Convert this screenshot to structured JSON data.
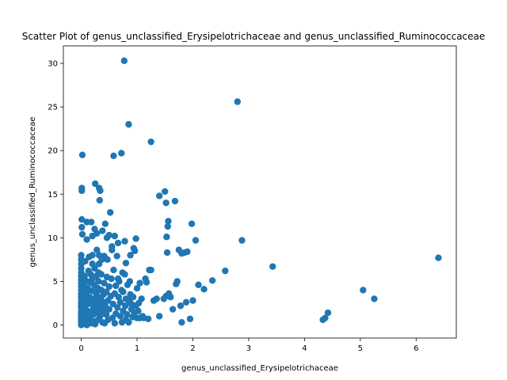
{
  "chart_data": {
    "type": "scatter",
    "title": "Scatter Plot of genus_unclassified_Erysipelotrichaceae and genus_unclassified_Ruminococcaceae",
    "xlabel": "genus_unclassified_Erysipelotrichaceae",
    "ylabel": "genus_unclassified_Ruminococcaceae",
    "xlim": [
      -0.32,
      6.72
    ],
    "ylim": [
      -1.5,
      32.0
    ],
    "xticks": [
      0,
      1,
      2,
      3,
      4,
      5,
      6
    ],
    "yticks": [
      0,
      5,
      10,
      15,
      20,
      25,
      30
    ],
    "grid": false,
    "marker_color": "#1f77b4",
    "points": [
      [
        0.0,
        0.0
      ],
      [
        0.0,
        0.1
      ],
      [
        0.0,
        0.3
      ],
      [
        0.0,
        0.5
      ],
      [
        0.0,
        0.7
      ],
      [
        0.0,
        1.0
      ],
      [
        0.0,
        1.3
      ],
      [
        0.0,
        1.6
      ],
      [
        0.0,
        2.0
      ],
      [
        0.0,
        2.3
      ],
      [
        0.0,
        2.6
      ],
      [
        0.0,
        3.0
      ],
      [
        0.0,
        3.3
      ],
      [
        0.0,
        3.6
      ],
      [
        0.0,
        4.0
      ],
      [
        0.0,
        4.4
      ],
      [
        0.0,
        4.8
      ],
      [
        0.0,
        5.2
      ],
      [
        0.0,
        5.6
      ],
      [
        0.0,
        6.0
      ],
      [
        0.0,
        6.5
      ],
      [
        0.0,
        7.0
      ],
      [
        0.0,
        7.5
      ],
      [
        0.0,
        8.0
      ],
      [
        0.01,
        11.2
      ],
      [
        0.01,
        12.1
      ],
      [
        0.01,
        15.4
      ],
      [
        0.01,
        15.7
      ],
      [
        0.02,
        19.5
      ],
      [
        0.02,
        10.4
      ],
      [
        0.05,
        0.2
      ],
      [
        0.05,
        1.1
      ],
      [
        0.05,
        2.2
      ],
      [
        0.05,
        3.4
      ],
      [
        0.05,
        4.5
      ],
      [
        0.06,
        5.6
      ],
      [
        0.07,
        7.3
      ],
      [
        0.08,
        0.6
      ],
      [
        0.08,
        1.8
      ],
      [
        0.08,
        2.8
      ],
      [
        0.1,
        3.8
      ],
      [
        0.1,
        5.0
      ],
      [
        0.1,
        9.8
      ],
      [
        0.1,
        11.8
      ],
      [
        0.1,
        0.0
      ],
      [
        0.12,
        1.4
      ],
      [
        0.12,
        2.4
      ],
      [
        0.12,
        4.2
      ],
      [
        0.13,
        6.2
      ],
      [
        0.14,
        7.8
      ],
      [
        0.15,
        0.8
      ],
      [
        0.15,
        3.2
      ],
      [
        0.16,
        4.9
      ],
      [
        0.17,
        5.8
      ],
      [
        0.18,
        11.8
      ],
      [
        0.18,
        0.2
      ],
      [
        0.18,
        1.6
      ],
      [
        0.2,
        2.8
      ],
      [
        0.2,
        3.9
      ],
      [
        0.2,
        5.3
      ],
      [
        0.2,
        7.0
      ],
      [
        0.2,
        8.0
      ],
      [
        0.2,
        10.2
      ],
      [
        0.22,
        0.4
      ],
      [
        0.22,
        1.2
      ],
      [
        0.22,
        2.1
      ],
      [
        0.23,
        3.0
      ],
      [
        0.23,
        4.6
      ],
      [
        0.24,
        6.5
      ],
      [
        0.24,
        11.0
      ],
      [
        0.25,
        16.2
      ],
      [
        0.25,
        0.1
      ],
      [
        0.26,
        1.8
      ],
      [
        0.26,
        2.6
      ],
      [
        0.27,
        3.6
      ],
      [
        0.27,
        5.6
      ],
      [
        0.28,
        8.6
      ],
      [
        0.28,
        10.5
      ],
      [
        0.3,
        0.6
      ],
      [
        0.3,
        1.4
      ],
      [
        0.3,
        2.4
      ],
      [
        0.3,
        3.2
      ],
      [
        0.3,
        4.2
      ],
      [
        0.31,
        5.0
      ],
      [
        0.31,
        6.0
      ],
      [
        0.32,
        7.0
      ],
      [
        0.32,
        8.0
      ],
      [
        0.32,
        15.7
      ],
      [
        0.33,
        14.3
      ],
      [
        0.34,
        15.4
      ],
      [
        0.34,
        1.0
      ],
      [
        0.35,
        2.0
      ],
      [
        0.35,
        3.0
      ],
      [
        0.36,
        4.0
      ],
      [
        0.36,
        5.8
      ],
      [
        0.37,
        7.5
      ],
      [
        0.38,
        10.8
      ],
      [
        0.38,
        0.3
      ],
      [
        0.4,
        1.6
      ],
      [
        0.4,
        2.6
      ],
      [
        0.4,
        3.5
      ],
      [
        0.41,
        4.8
      ],
      [
        0.41,
        7.9
      ],
      [
        0.42,
        0.2
      ],
      [
        0.43,
        2.2
      ],
      [
        0.43,
        11.6
      ],
      [
        0.45,
        1.2
      ],
      [
        0.45,
        3.8
      ],
      [
        0.46,
        5.5
      ],
      [
        0.46,
        10.0
      ],
      [
        0.47,
        7.5
      ],
      [
        0.48,
        0.6
      ],
      [
        0.48,
        2.8
      ],
      [
        0.5,
        4.4
      ],
      [
        0.5,
        10.3
      ],
      [
        0.5,
        1.8
      ],
      [
        0.52,
        12.9
      ],
      [
        0.53,
        3.3
      ],
      [
        0.54,
        5.3
      ],
      [
        0.55,
        8.6
      ],
      [
        0.55,
        9.0
      ],
      [
        0.56,
        0.8
      ],
      [
        0.57,
        2.4
      ],
      [
        0.58,
        19.4
      ],
      [
        0.58,
        6.3
      ],
      [
        0.6,
        3.6
      ],
      [
        0.6,
        10.2
      ],
      [
        0.6,
        0.2
      ],
      [
        0.62,
        1.3
      ],
      [
        0.62,
        4.5
      ],
      [
        0.64,
        7.9
      ],
      [
        0.65,
        2.0
      ],
      [
        0.66,
        5.3
      ],
      [
        0.66,
        9.4
      ],
      [
        0.67,
        3.2
      ],
      [
        0.68,
        5.0
      ],
      [
        0.7,
        1.0
      ],
      [
        0.7,
        2.6
      ],
      [
        0.72,
        19.7
      ],
      [
        0.72,
        4.0
      ],
      [
        0.73,
        0.3
      ],
      [
        0.74,
        6.0
      ],
      [
        0.75,
        1.6
      ],
      [
        0.75,
        3.8
      ],
      [
        0.77,
        30.3
      ],
      [
        0.78,
        5.8
      ],
      [
        0.78,
        9.6
      ],
      [
        0.79,
        2.2
      ],
      [
        0.8,
        7.1
      ],
      [
        0.8,
        3.0
      ],
      [
        0.8,
        0.6
      ],
      [
        0.82,
        1.2
      ],
      [
        0.83,
        4.6
      ],
      [
        0.85,
        23.0
      ],
      [
        0.85,
        0.3
      ],
      [
        0.86,
        2.8
      ],
      [
        0.87,
        5.0
      ],
      [
        0.88,
        8.0
      ],
      [
        0.88,
        3.5
      ],
      [
        0.9,
        1.8
      ],
      [
        0.9,
        2.4
      ],
      [
        0.92,
        0.9
      ],
      [
        0.93,
        3.2
      ],
      [
        0.94,
        8.8
      ],
      [
        0.95,
        1.4
      ],
      [
        0.96,
        8.5
      ],
      [
        0.98,
        2.2
      ],
      [
        0.98,
        9.9
      ],
      [
        1.0,
        0.8
      ],
      [
        1.0,
        4.2
      ],
      [
        1.02,
        1.6
      ],
      [
        1.03,
        2.5
      ],
      [
        1.05,
        0.8
      ],
      [
        1.05,
        4.8
      ],
      [
        1.08,
        3.0
      ],
      [
        1.1,
        1.0
      ],
      [
        1.12,
        0.8
      ],
      [
        1.15,
        5.3
      ],
      [
        1.17,
        4.9
      ],
      [
        1.2,
        0.7
      ],
      [
        1.22,
        6.3
      ],
      [
        1.25,
        21.0
      ],
      [
        1.25,
        6.3
      ],
      [
        1.3,
        2.8
      ],
      [
        1.35,
        3.0
      ],
      [
        1.4,
        14.8
      ],
      [
        1.4,
        1.0
      ],
      [
        1.48,
        3.0
      ],
      [
        1.5,
        15.3
      ],
      [
        1.52,
        14.0
      ],
      [
        1.52,
        3.3
      ],
      [
        1.53,
        10.1
      ],
      [
        1.54,
        8.3
      ],
      [
        1.55,
        11.3
      ],
      [
        1.56,
        11.9
      ],
      [
        1.57,
        3.6
      ],
      [
        1.6,
        3.2
      ],
      [
        1.64,
        1.8
      ],
      [
        1.68,
        14.2
      ],
      [
        1.7,
        4.7
      ],
      [
        1.72,
        5.0
      ],
      [
        1.75,
        8.6
      ],
      [
        1.78,
        2.2
      ],
      [
        1.8,
        8.2
      ],
      [
        1.8,
        0.3
      ],
      [
        1.85,
        8.3
      ],
      [
        1.88,
        2.6
      ],
      [
        1.9,
        8.4
      ],
      [
        1.95,
        0.7
      ],
      [
        1.98,
        11.6
      ],
      [
        2.0,
        2.8
      ],
      [
        2.05,
        9.7
      ],
      [
        2.1,
        4.6
      ],
      [
        2.2,
        4.1
      ],
      [
        2.35,
        5.1
      ],
      [
        2.58,
        6.2
      ],
      [
        2.8,
        25.6
      ],
      [
        2.88,
        9.7
      ],
      [
        3.43,
        6.7
      ],
      [
        4.33,
        0.6
      ],
      [
        4.37,
        0.8
      ],
      [
        4.42,
        1.4
      ],
      [
        5.05,
        4.0
      ],
      [
        5.25,
        3.0
      ],
      [
        6.4,
        7.7
      ]
    ]
  }
}
